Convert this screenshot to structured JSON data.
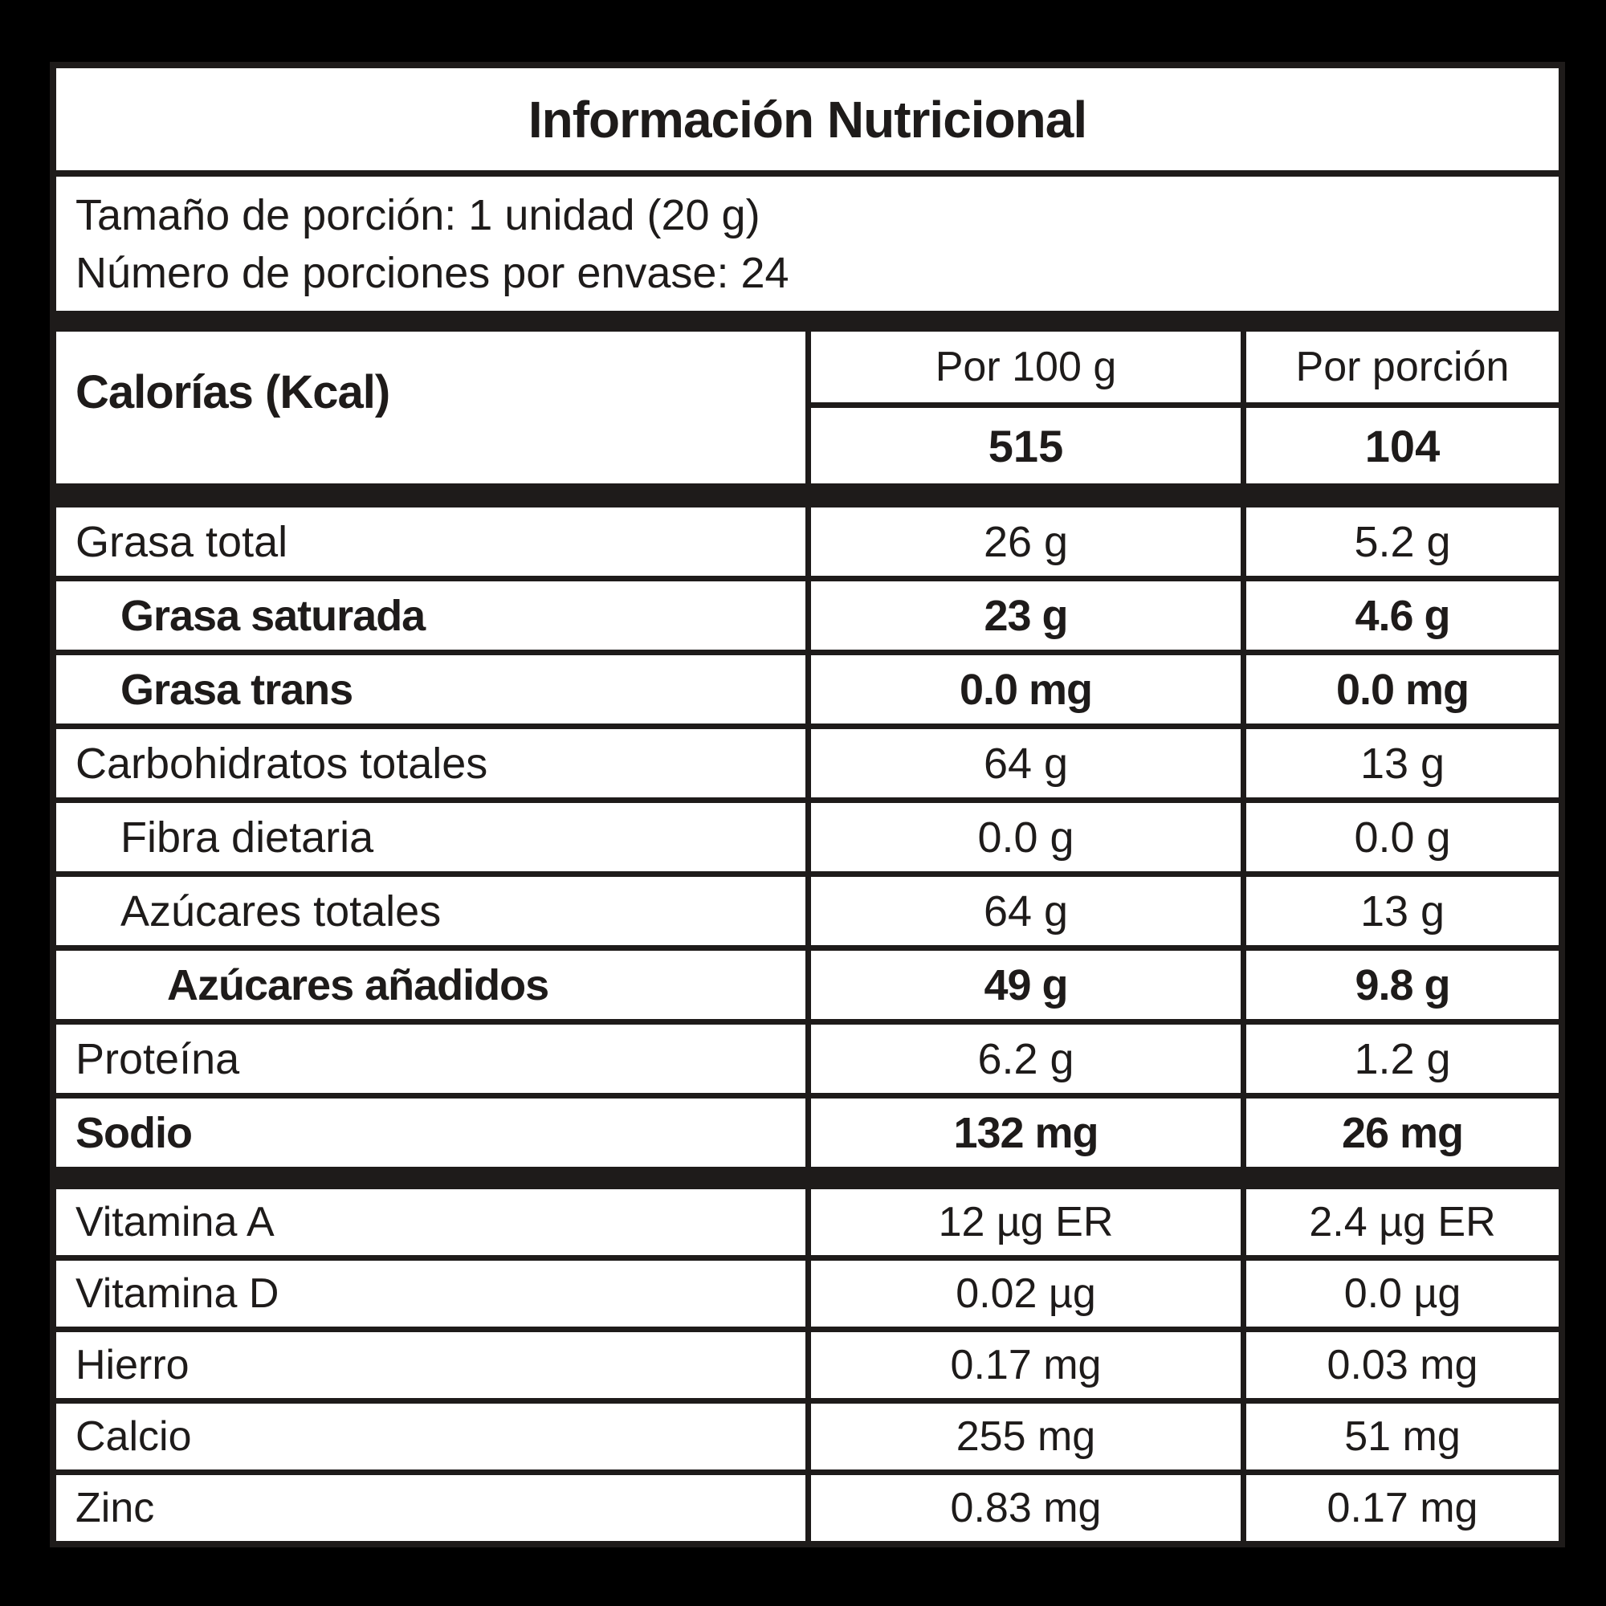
{
  "label": {
    "title": "Información Nutricional",
    "serving": {
      "line1": "Tamaño de porción: 1 unidad (20 g)",
      "line2": "Número de porciones por envase: 24"
    },
    "calories": {
      "name": "Calorías (Kcal)",
      "col_per_100g": "Por 100 g",
      "col_per_portion": "Por porción",
      "per100": "515",
      "perPortion": "104"
    },
    "rows": [
      {
        "name": "Grasa total",
        "per100": "26 g",
        "perPortion": "5.2 g",
        "bold": false,
        "indent": 0
      },
      {
        "name": "Grasa saturada",
        "per100": "23 g",
        "perPortion": "4.6 g",
        "bold": true,
        "indent": 1
      },
      {
        "name": "Grasa trans",
        "per100": "0.0 mg",
        "perPortion": "0.0 mg",
        "bold": true,
        "indent": 1
      },
      {
        "name": "Carbohidratos totales",
        "per100": "64 g",
        "perPortion": "13 g",
        "bold": false,
        "indent": 0
      },
      {
        "name": "Fibra dietaria",
        "per100": "0.0 g",
        "perPortion": "0.0 g",
        "bold": false,
        "indent": 1
      },
      {
        "name": "Azúcares totales",
        "per100": "64 g",
        "perPortion": "13 g",
        "bold": false,
        "indent": 1
      },
      {
        "name": "Azúcares añadidos",
        "per100": "49 g",
        "perPortion": "9.8 g",
        "bold": true,
        "indent": 2
      },
      {
        "name": "Proteína",
        "per100": "6.2 g",
        "perPortion": "1.2 g",
        "bold": false,
        "indent": 0
      },
      {
        "name": "Sodio",
        "per100": "132 mg",
        "perPortion": "26 mg",
        "bold": true,
        "indent": 0
      }
    ],
    "micronutrients": [
      {
        "name": "Vitamina A",
        "per100": "12 µg ER",
        "perPortion": "2.4 µg ER"
      },
      {
        "name": "Vitamina D",
        "per100": "0.02 µg",
        "perPortion": "0.0 µg"
      },
      {
        "name": "Hierro",
        "per100": "0.17 mg",
        "perPortion": "0.03 mg"
      },
      {
        "name": "Calcio",
        "per100": "255 mg",
        "perPortion": "51 mg"
      },
      {
        "name": "Zinc",
        "per100": "0.83 mg",
        "perPortion": "0.17 mg"
      }
    ],
    "colors": {
      "background": "#000000",
      "line": "#1e1b1a",
      "cell": "#ffffff",
      "text": "#1e1b1a"
    }
  }
}
